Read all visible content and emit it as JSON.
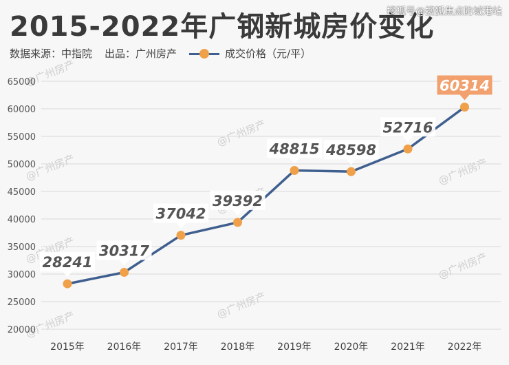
{
  "title": "2015-2022年广钢新城房价变化",
  "watermark": "搜狐号@搜狐焦点防城港站",
  "source_label": "数据来源：中指院",
  "publisher_label": "出品：广州房产",
  "colors": {
    "line": "#3f5f8f",
    "marker": "#f0a048",
    "highlight_badge": "#f2a06e",
    "label_text": "#555555",
    "grid": "#d9d9d9"
  },
  "chart_data": {
    "type": "line",
    "categories": [
      "2015年",
      "2016年",
      "2017年",
      "2018年",
      "2019年",
      "2020年",
      "2021年",
      "2022年"
    ],
    "series": [
      {
        "name": "成交价格（元/平）",
        "values": [
          28241,
          30317,
          37042,
          39392,
          48815,
          48598,
          52716,
          60314
        ]
      }
    ],
    "data_labels": [
      "28241",
      "30317",
      "37042",
      "39392",
      "48815",
      "48598",
      "52716",
      "60314"
    ],
    "highlighted_point": "2022年",
    "yticks": [
      "20000",
      "25000",
      "30000",
      "35000",
      "40000",
      "45000",
      "50000",
      "55000",
      "60000",
      "65000"
    ],
    "ylim": [
      20000,
      65000
    ],
    "grid": "horizontal",
    "legend_position": "top",
    "watermark_text": "@广州房产"
  }
}
